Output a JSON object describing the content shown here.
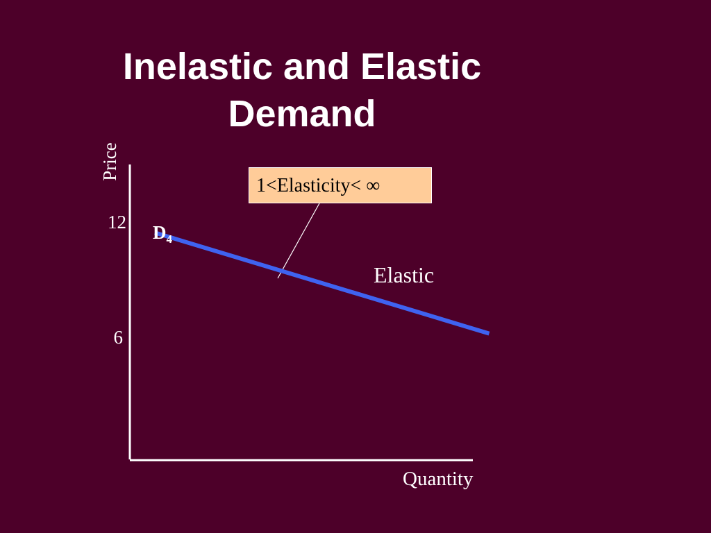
{
  "slide": {
    "title_lines": [
      "Inelastic and Elastic",
      "Demand"
    ]
  },
  "colors": {
    "background": "#4d0029",
    "demand_line": "#3f63f0",
    "axis": "#ffffff",
    "callout_fill": "#ffcc99"
  },
  "chart_data": {
    "type": "line",
    "title": "Inelastic and Elastic Demand",
    "xlabel": "Quantity",
    "ylabel": "Price",
    "ylim": [
      0,
      12
    ],
    "yticks": [
      12,
      6
    ],
    "ytick_labels": [
      "12",
      "6"
    ],
    "grid": false,
    "series": [
      {
        "name": "D4",
        "label_main": "D",
        "label_sub": "4",
        "points": [
          {
            "x": 0.08,
            "y": 11.5
          },
          {
            "x": 1.15,
            "y": 6.4
          }
        ]
      }
    ],
    "annotations": {
      "region_label": "Elastic",
      "callout_text": "1<Elasticity< ∞"
    }
  }
}
